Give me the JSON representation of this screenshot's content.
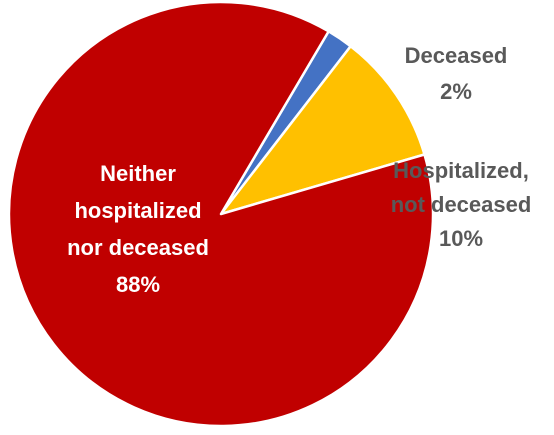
{
  "chart_data": {
    "type": "pie",
    "title": "",
    "slices": [
      {
        "label_lines": [
          "Deceased",
          "2%"
        ],
        "value": 2,
        "color": "#4472C4",
        "label_color": "#595959"
      },
      {
        "label_lines": [
          "Hospitalized,",
          "not deceased",
          "10%"
        ],
        "value": 10,
        "color": "#FFC000",
        "label_color": "#595959"
      },
      {
        "label_lines": [
          "Neither",
          "hospitalized",
          "nor deceased",
          "88%"
        ],
        "value": 88,
        "color": "#C00000",
        "label_color": "#FFFFFF"
      }
    ]
  }
}
